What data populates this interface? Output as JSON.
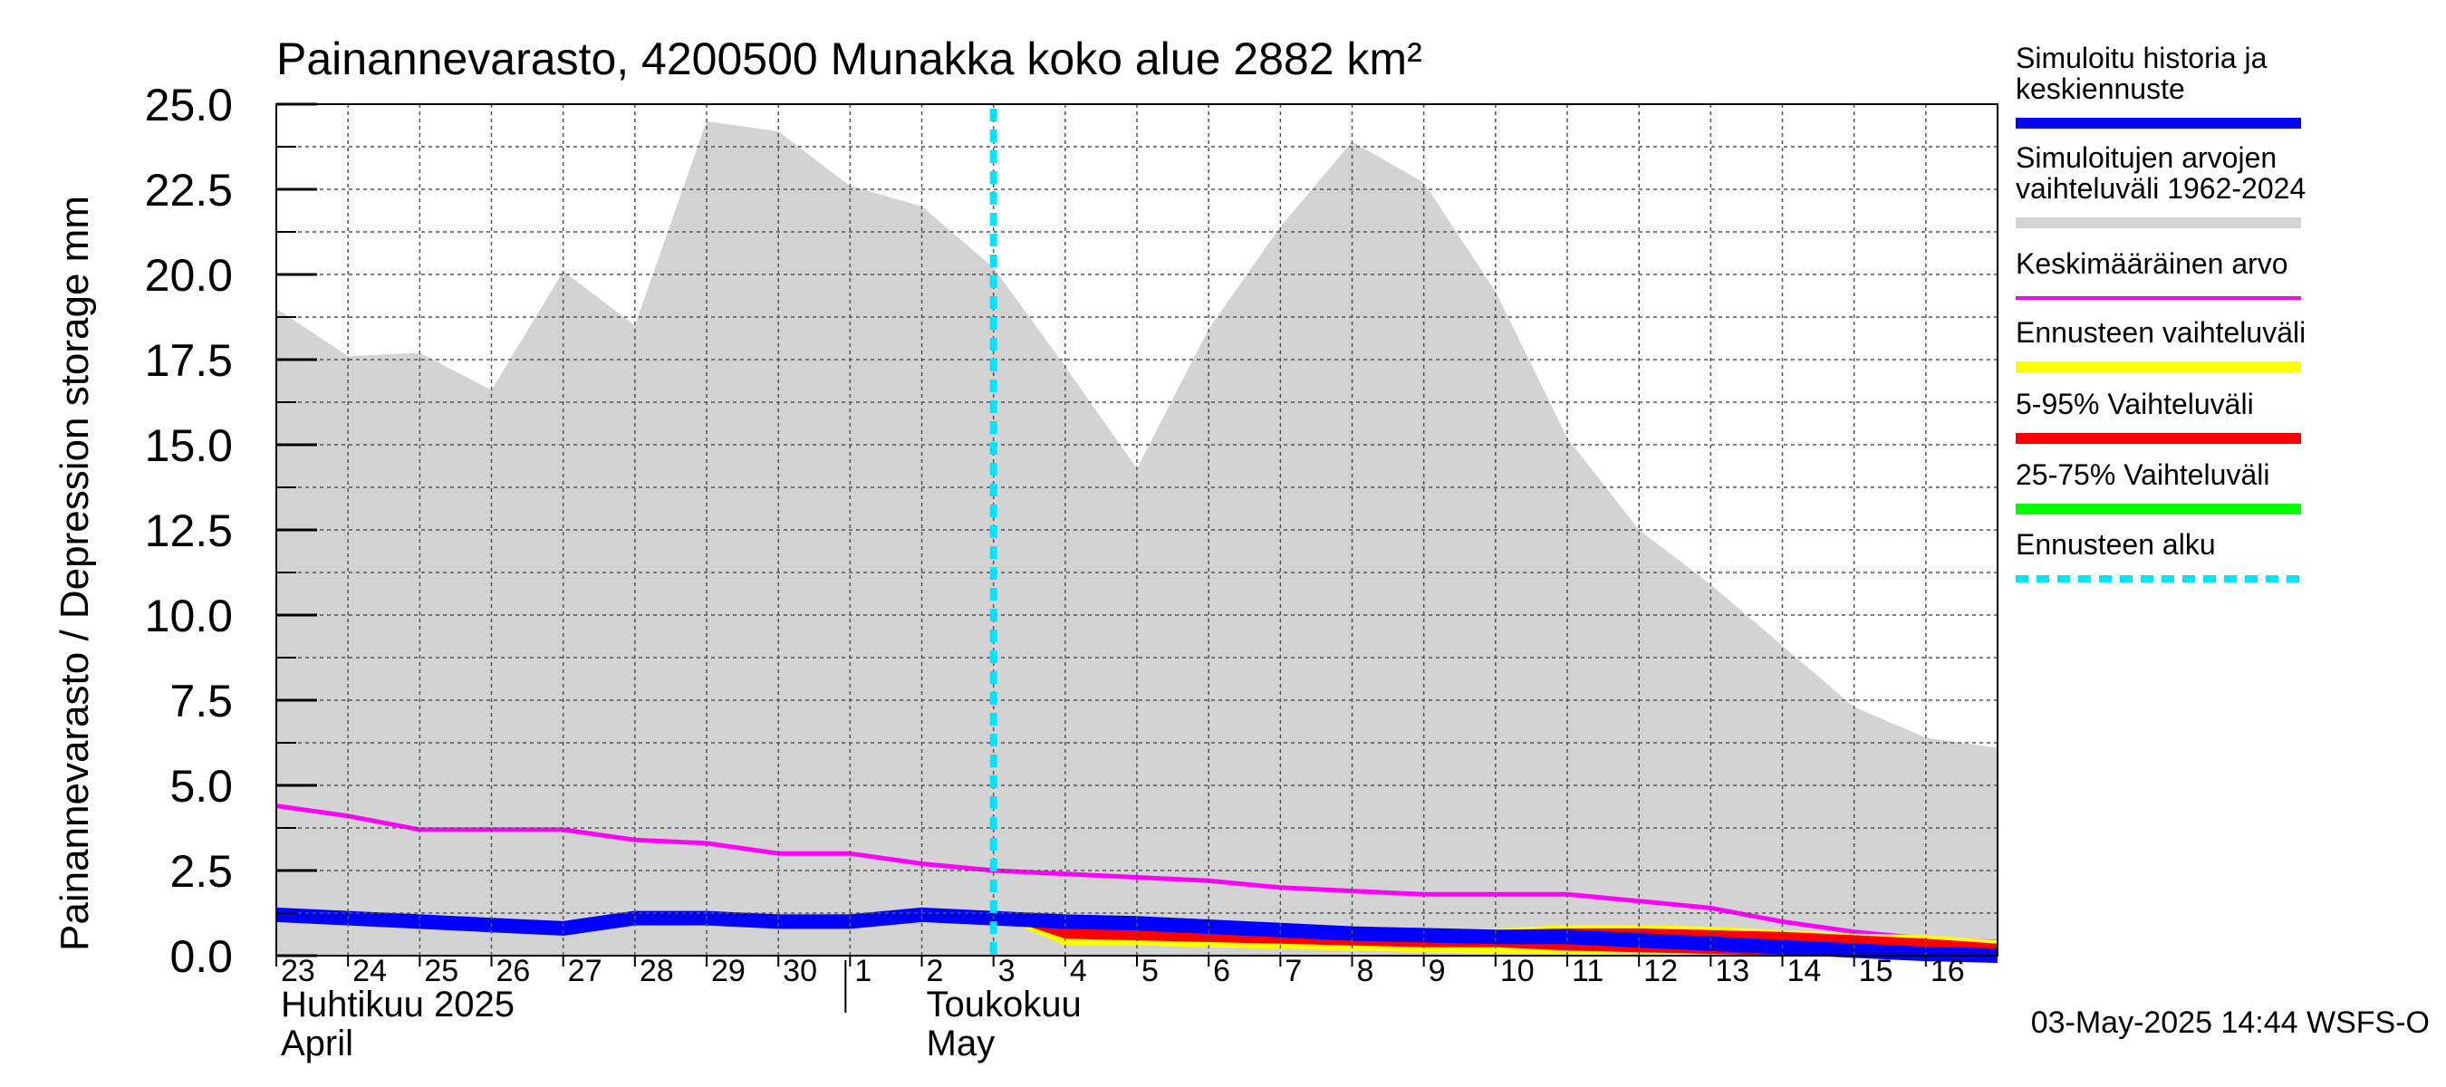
{
  "chart_data": {
    "type": "area",
    "title": "Painannevarasto, 4200500 Munakka koko alue 2882 km²",
    "ylabel": "Painannevarasto / Depression storage    mm",
    "ylim": [
      0,
      25
    ],
    "yticks": [
      "0.0",
      "2.5",
      "5.0",
      "7.5",
      "10.0",
      "12.5",
      "15.0",
      "17.5",
      "20.0",
      "22.5",
      "25.0"
    ],
    "x_start": "2025-04-23",
    "x_days": [
      "23",
      "24",
      "25",
      "26",
      "27",
      "28",
      "29",
      "30",
      "1",
      "2",
      "3",
      "4",
      "5",
      "6",
      "7",
      "8",
      "9",
      "10",
      "11",
      "12",
      "13",
      "14",
      "15",
      "16"
    ],
    "month_labels": [
      {
        "line1": "Huhtikuu  2025",
        "line2": "April",
        "at_day": "23"
      },
      {
        "line1": "Toukokuu",
        "line2": "May",
        "at_day": "2"
      }
    ],
    "grid": true,
    "legend_placement": "right",
    "forecast_start": 10.0,
    "timestamp": "03-May-2025 14:44 WSFS-O",
    "legend": [
      {
        "label": "Simuloitu historia ja keskiennuste",
        "color": "#0000ff",
        "style": "thick"
      },
      {
        "label": "Simuloitujen arvojen vaihteluväli 1962-2024",
        "color": "#d3d3d3",
        "style": "thick"
      },
      {
        "label": "Keskimääräinen arvo",
        "color": "#ff00ff",
        "style": "thin"
      },
      {
        "label": "Ennusteen vaihteluväli",
        "color": "#ffff00",
        "style": "thick"
      },
      {
        "label": "5-95% Vaihteluväli",
        "color": "#ff0000",
        "style": "thick"
      },
      {
        "label": "25-75% Vaihteluväli",
        "color": "#00ff00",
        "style": "thick"
      },
      {
        "label": "Ennusteen alku",
        "color": "#00e5ff",
        "style": "dashed"
      }
    ],
    "series": [
      {
        "name": "Simuloitujen arvojen vaihteluväli 1962-2024",
        "kind": "band",
        "x": [
          0,
          1,
          2,
          3,
          4,
          5,
          6,
          7,
          8,
          9,
          10,
          11,
          12,
          13,
          14,
          15,
          16,
          17,
          18,
          19,
          20,
          21,
          22,
          23,
          24
        ],
        "upper": [
          19.0,
          17.6,
          17.7,
          16.6,
          20.1,
          18.5,
          24.5,
          24.2,
          22.6,
          22.0,
          20.2,
          17.3,
          14.3,
          18.4,
          21.4,
          23.9,
          22.7,
          19.5,
          15.2,
          12.5,
          10.9,
          9.1,
          7.3,
          6.4,
          6.1
        ],
        "lower": [
          0,
          0,
          0,
          0,
          0,
          0,
          0,
          0,
          0,
          0,
          0,
          0,
          0,
          0,
          0,
          0,
          0,
          0,
          0,
          0,
          0,
          0,
          0,
          0,
          0
        ]
      },
      {
        "name": "Keskimääräinen arvo",
        "kind": "line",
        "x": [
          0,
          1,
          2,
          3,
          4,
          5,
          6,
          7,
          8,
          9,
          10,
          11,
          12,
          13,
          14,
          15,
          16,
          17,
          18,
          19,
          20,
          21,
          22,
          23,
          24
        ],
        "values": [
          4.4,
          4.1,
          3.7,
          3.7,
          3.7,
          3.4,
          3.3,
          3.0,
          3.0,
          2.7,
          2.5,
          2.4,
          2.3,
          2.2,
          2.0,
          1.9,
          1.8,
          1.8,
          1.8,
          1.6,
          1.4,
          1.0,
          0.7,
          0.5,
          0.4
        ]
      },
      {
        "name": "Ennusteen vaihteluväli",
        "kind": "band",
        "x": [
          10,
          11,
          12,
          13,
          14,
          15,
          16,
          17,
          18,
          19,
          20,
          21,
          22,
          23,
          24
        ],
        "upper": [
          1.2,
          1.1,
          1.0,
          0.9,
          0.8,
          0.75,
          0.75,
          0.8,
          0.9,
          0.9,
          0.85,
          0.75,
          0.65,
          0.6,
          0.45
        ],
        "lower": [
          1.2,
          0.3,
          0.3,
          0.25,
          0.2,
          0.15,
          0.1,
          0.05,
          0.05,
          0.05,
          0.0,
          0.0,
          0.0,
          0.0,
          0.0
        ]
      },
      {
        "name": "5-95% Vaihteluväli",
        "kind": "band",
        "x": [
          10,
          11,
          12,
          13,
          14,
          15,
          16,
          17,
          18,
          19,
          20,
          21,
          22,
          23,
          24
        ],
        "upper": [
          1.2,
          1.05,
          1.0,
          0.85,
          0.75,
          0.7,
          0.7,
          0.75,
          0.8,
          0.8,
          0.75,
          0.7,
          0.6,
          0.5,
          0.35
        ],
        "lower": [
          1.2,
          0.5,
          0.45,
          0.4,
          0.35,
          0.3,
          0.25,
          0.25,
          0.15,
          0.1,
          0.05,
          0.0,
          0.0,
          0.0,
          0.0
        ]
      },
      {
        "name": "25-75% Vaihteluväli",
        "kind": "band",
        "x": [
          10,
          11,
          12,
          13,
          14,
          15,
          16,
          17,
          18,
          19,
          20,
          21,
          22,
          23,
          24
        ],
        "upper": [
          1.2,
          1.05,
          0.95,
          0.85,
          0.75,
          0.7,
          0.7,
          0.7,
          0.7,
          0.65,
          0.55,
          0.45,
          0.35,
          0.25,
          0.15
        ],
        "lower": [
          1.2,
          0.95,
          0.85,
          0.7,
          0.6,
          0.55,
          0.5,
          0.45,
          0.4,
          0.3,
          0.2,
          0.15,
          0.1,
          0.05,
          0.0
        ]
      },
      {
        "name": "Simuloitu historia ja keskiennuste",
        "kind": "line",
        "x": [
          0,
          1,
          2,
          3,
          4,
          5,
          6,
          7,
          8,
          9,
          10,
          11,
          12,
          13,
          14,
          15,
          16,
          17,
          18,
          19,
          20,
          21,
          22,
          23,
          24
        ],
        "values": [
          1.2,
          1.1,
          1.0,
          0.9,
          0.8,
          1.1,
          1.1,
          1.0,
          1.0,
          1.2,
          1.1,
          1.0,
          0.95,
          0.85,
          0.75,
          0.65,
          0.6,
          0.55,
          0.55,
          0.45,
          0.35,
          0.25,
          0.15,
          0.05,
          0.0
        ]
      }
    ]
  }
}
